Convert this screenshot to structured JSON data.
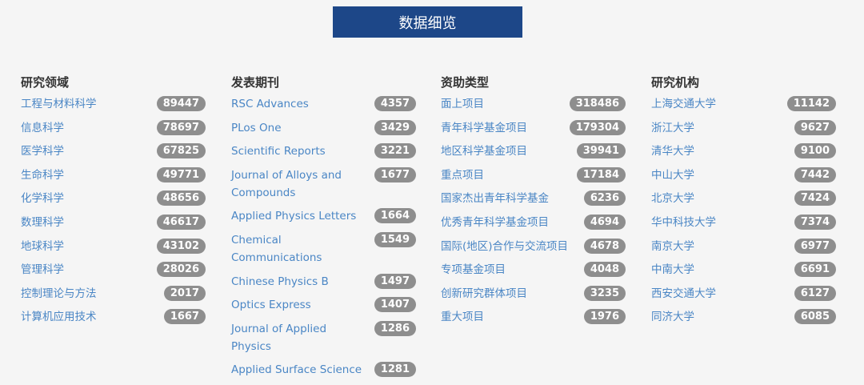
{
  "banner": {
    "title": "数据细览"
  },
  "colors": {
    "banner": "#1d4788",
    "link": "#4a86c5",
    "badge": "#8e8e8e"
  },
  "columns": [
    {
      "title": "研究领域",
      "items": [
        {
          "label": "工程与材料科学",
          "count": "89447"
        },
        {
          "label": "信息科学",
          "count": "78697"
        },
        {
          "label": "医学科学",
          "count": "67825"
        },
        {
          "label": "生命科学",
          "count": "49771"
        },
        {
          "label": "化学科学",
          "count": "48656"
        },
        {
          "label": "数理科学",
          "count": "46617"
        },
        {
          "label": "地球科学",
          "count": "43102"
        },
        {
          "label": "管理科学",
          "count": "28026"
        },
        {
          "label": "控制理论与方法",
          "count": "2017"
        },
        {
          "label": "计算机应用技术",
          "count": "1667"
        }
      ]
    },
    {
      "title": "发表期刊",
      "items": [
        {
          "label": "RSC Advances",
          "count": "4357"
        },
        {
          "label": "PLos One",
          "count": "3429"
        },
        {
          "label": "Scientific Reports",
          "count": "3221"
        },
        {
          "label": "Journal of Alloys and Compounds",
          "count": "1677"
        },
        {
          "label": "Applied Physics Letters",
          "count": "1664"
        },
        {
          "label": "Chemical Communications",
          "count": "1549"
        },
        {
          "label": "Chinese Physics B",
          "count": "1497"
        },
        {
          "label": "Optics Express",
          "count": "1407"
        },
        {
          "label": "Journal of Applied Physics",
          "count": "1286"
        },
        {
          "label": "Applied Surface Science",
          "count": "1281"
        }
      ]
    },
    {
      "title": "资助类型",
      "items": [
        {
          "label": "面上项目",
          "count": "318486"
        },
        {
          "label": "青年科学基金项目",
          "count": "179304"
        },
        {
          "label": "地区科学基金项目",
          "count": "39941"
        },
        {
          "label": "重点项目",
          "count": "17184"
        },
        {
          "label": "国家杰出青年科学基金",
          "count": "6236"
        },
        {
          "label": "优秀青年科学基金项目",
          "count": "4694"
        },
        {
          "label": "国际(地区)合作与交流项目",
          "count": "4678"
        },
        {
          "label": "专项基金项目",
          "count": "4048"
        },
        {
          "label": "创新研究群体项目",
          "count": "3235"
        },
        {
          "label": "重大项目",
          "count": "1976"
        }
      ]
    },
    {
      "title": "研究机构",
      "items": [
        {
          "label": "上海交通大学",
          "count": "11142"
        },
        {
          "label": "浙江大学",
          "count": "9627"
        },
        {
          "label": "清华大学",
          "count": "9100"
        },
        {
          "label": "中山大学",
          "count": "7442"
        },
        {
          "label": "北京大学",
          "count": "7424"
        },
        {
          "label": "华中科技大学",
          "count": "7374"
        },
        {
          "label": "南京大学",
          "count": "6977"
        },
        {
          "label": "中南大学",
          "count": "6691"
        },
        {
          "label": "西安交通大学",
          "count": "6127"
        },
        {
          "label": "同济大学",
          "count": "6085"
        }
      ]
    }
  ]
}
